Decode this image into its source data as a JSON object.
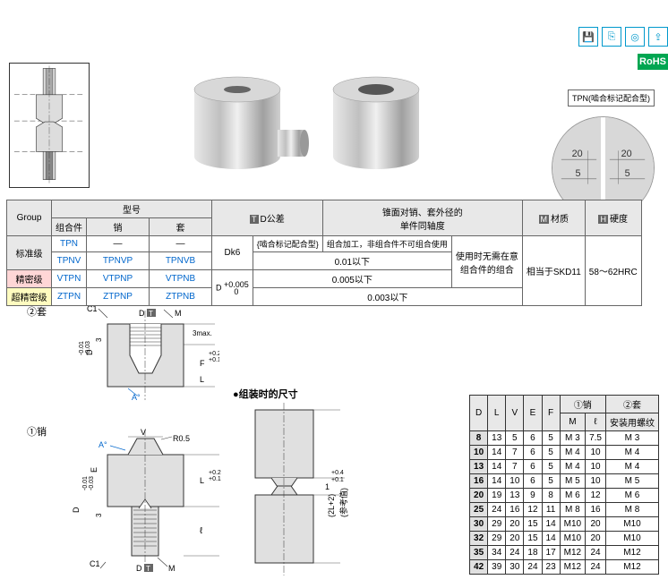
{
  "badges": {
    "rohs": "RoHS"
  },
  "product": {
    "tpn_label": "TPN(啮合标记配合型)",
    "detail_nums": {
      "left1": "20",
      "left2": "5",
      "right1": "20",
      "right2": "5"
    }
  },
  "spec_table": {
    "headers": {
      "group": "Group",
      "model": "型号",
      "sub_set": "组合件",
      "sub_pin": "销",
      "sub_sleeve": "套",
      "td": "D公差",
      "coax": "锥面对销、套外径的\n单件同轴度",
      "material": "材质",
      "hardness": "硬度",
      "marker_t": "T",
      "marker_m": "M",
      "marker_h": "H"
    },
    "rows": [
      {
        "grade": "标准级",
        "set": "TPN",
        "pin": "—",
        "sleeve": "—",
        "rowspan_grade": 2
      },
      {
        "set": "TPNV",
        "pin": "TPNVP",
        "sleeve": "TPNVB"
      },
      {
        "grade": "精密级",
        "set": "VTPN",
        "pin": "VTPNP",
        "sleeve": "VTPNB",
        "grade_bg": "pink"
      },
      {
        "grade": "超精密级",
        "set": "ZTPN",
        "pin": "ZTPNP",
        "sleeve": "ZTPNB",
        "grade_bg": "yellow"
      }
    ],
    "tolerance": {
      "dk6": "Dk6",
      "dplus": "D",
      "dplus_sup": "+0.005",
      "dplus_sub": "0",
      "mesh_note": "{啮合标记配合型}",
      "combo_note": "组合加工，非组合件不可组合使用",
      "v1": "0.01以下",
      "v2": "0.005以下",
      "v3": "0.003以下",
      "use_note": "使用时无需在意\n组合件的组合"
    },
    "material": "相当于SKD11",
    "hardness": "58～62HRC"
  },
  "drawings": {
    "sleeve_label": "②套",
    "pin_label": "①销",
    "assembly_label": "●组装时的尺寸",
    "c1": "C1",
    "d": "D",
    "t_marker": "T",
    "m": "M",
    "f": "F",
    "a": "A°",
    "v": "V",
    "r05": "R0.5",
    "e": "E",
    "l": "L",
    "l_tol": "+0.2\n+0.1",
    "e_tol": "-0.01\n-0.03",
    "d_tol": "-0.01\n-0.03",
    "three": "3",
    "threemax": "3max.",
    "ell": "ℓ",
    "plus04": "+0.4\n+0.1",
    "twol": "(2L+2)",
    "ref": "(参考值)",
    "one": "1"
  },
  "dim_table": {
    "headers": {
      "d": "D",
      "l": "L",
      "v": "V",
      "e": "E",
      "f": "F",
      "pin": "①销",
      "sleeve": "②套",
      "m": "M",
      "ell": "ℓ",
      "thread": "安装用螺纹"
    },
    "rows": [
      {
        "d": "8",
        "l": "13",
        "v": "5",
        "e": "6",
        "f": "5",
        "m": "M 3",
        "ell": "7.5",
        "th": "M 3"
      },
      {
        "d": "10",
        "l": "14",
        "v": "7",
        "e": "6",
        "f": "5",
        "m": "M 4",
        "ell": "10",
        "th": "M 4"
      },
      {
        "d": "13",
        "l": "14",
        "v": "7",
        "e": "6",
        "f": "5",
        "m": "M 4",
        "ell": "10",
        "th": "M 4"
      },
      {
        "d": "16",
        "l": "14",
        "v": "10",
        "e": "6",
        "f": "5",
        "m": "M 5",
        "ell": "10",
        "th": "M 5"
      },
      {
        "d": "20",
        "l": "19",
        "v": "13",
        "e": "9",
        "f": "8",
        "m": "M 6",
        "ell": "12",
        "th": "M 6"
      },
      {
        "d": "25",
        "l": "24",
        "v": "16",
        "e": "12",
        "f": "11",
        "m": "M 8",
        "ell": "16",
        "th": "M 8"
      },
      {
        "d": "30",
        "l": "29",
        "v": "20",
        "e": "15",
        "f": "14",
        "m": "M10",
        "ell": "20",
        "th": "M10"
      },
      {
        "d": "32",
        "l": "29",
        "v": "20",
        "e": "15",
        "f": "14",
        "m": "M10",
        "ell": "20",
        "th": "M10"
      },
      {
        "d": "35",
        "l": "34",
        "v": "24",
        "e": "18",
        "f": "17",
        "m": "M12",
        "ell": "24",
        "th": "M12"
      },
      {
        "d": "42",
        "l": "39",
        "v": "30",
        "e": "24",
        "f": "23",
        "m": "M12",
        "ell": "24",
        "th": "M12"
      }
    ]
  },
  "colors": {
    "link": "#0066cc",
    "pink": "#ffd6d6",
    "yellow": "#fffcc0",
    "header": "#e8e8e8",
    "green": "#00a651",
    "icon": "#0099cc",
    "steel1": "#d0d0d0",
    "steel2": "#a0a0a0"
  }
}
